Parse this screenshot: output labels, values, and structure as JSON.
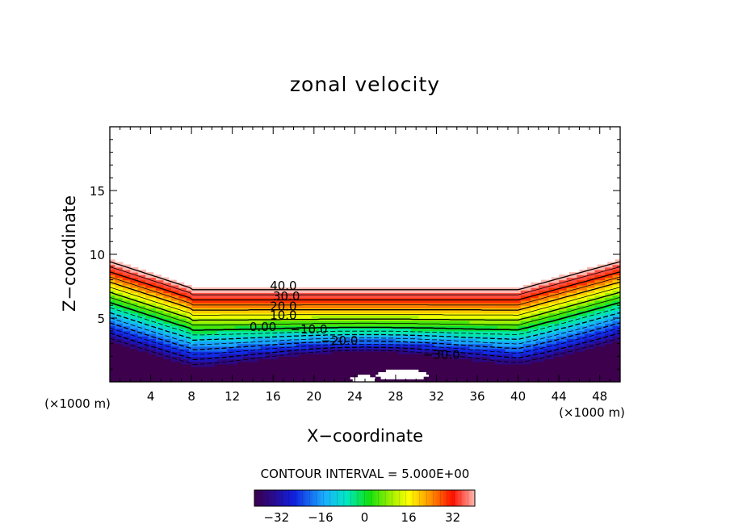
{
  "chart_data": {
    "type": "heatmap",
    "title": "zonal velocity",
    "xlabel": "X−coordinate",
    "ylabel": "Z−coordinate",
    "x_unit_left": "(×1000 m)",
    "x_unit_right": "(×1000 m)",
    "xlim": [
      0,
      50
    ],
    "ylim": [
      0,
      20
    ],
    "x_ticks": [
      4,
      8,
      12,
      16,
      20,
      24,
      28,
      32,
      36,
      40,
      44,
      48
    ],
    "y_ticks": [
      5,
      10,
      15
    ],
    "contour_interval_text": "CONTOUR INTERVAL = 5.000E+00",
    "contour_labels": [
      {
        "text": "40.0",
        "x": 17.0,
        "z": 7.2
      },
      {
        "text": "30.0",
        "x": 17.3,
        "z": 6.4
      },
      {
        "text": "20.0",
        "x": 17.0,
        "z": 5.6
      },
      {
        "text": "10.0",
        "x": 17.0,
        "z": 4.9
      },
      {
        "text": "0.00",
        "x": 15.0,
        "z": 4.0
      },
      {
        "text": "−10.0",
        "x": 19.5,
        "z": 3.8
      },
      {
        "text": "−20.0",
        "x": 22.5,
        "z": 2.9
      },
      {
        "text": "−30.0",
        "x": 32.5,
        "z": 1.8
      }
    ],
    "colorbar": {
      "min": -40,
      "max": 40,
      "ticks": [
        -32,
        -16,
        0,
        16,
        32
      ],
      "tick_labels": [
        "−32",
        "−16",
        "0",
        "16",
        "32"
      ]
    },
    "field_description_note": ""
  }
}
